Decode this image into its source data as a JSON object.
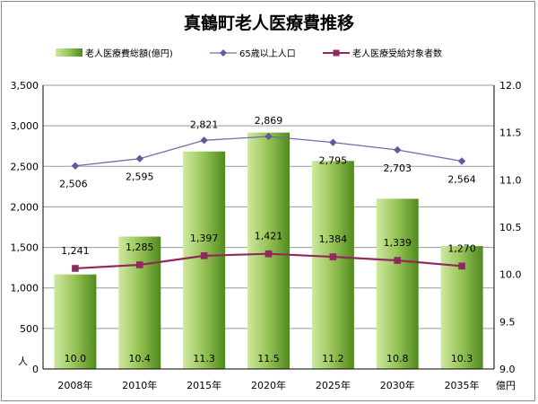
{
  "colors": {
    "bar_light": "#cfe8a3",
    "bar_dark": "#4f8a1e",
    "population_line": "#6e6ea8",
    "population_marker": "#5c5c9c",
    "eligible_line": "#8e2a5e",
    "eligible_marker": "#8e2a5e",
    "grid": "#9a9a9a"
  },
  "chart_data": {
    "type": "bar",
    "title": "真鶴町老人医療費推移",
    "categories": [
      "2008年",
      "2010年",
      "2015年",
      "2020年",
      "2025年",
      "2030年",
      "2035年"
    ],
    "series": [
      {
        "name": "老人医療費総額(億円)",
        "type": "bar",
        "axis": "right",
        "values": [
          10.0,
          10.4,
          11.3,
          11.5,
          11.2,
          10.8,
          10.3
        ],
        "labels": [
          "10.0",
          "10.4",
          "11.3",
          "11.5",
          "11.2",
          "10.8",
          "10.3"
        ]
      },
      {
        "name": "65歳以上人口",
        "type": "line",
        "axis": "left",
        "marker": "diamond",
        "values": [
          2506,
          2595,
          2821,
          2869,
          2795,
          2703,
          2564
        ],
        "labels": [
          "2,506",
          "2,595",
          "2,821",
          "2,869",
          "2,795",
          "2,703",
          "2,564"
        ]
      },
      {
        "name": "老人医療受給対象者数",
        "type": "line",
        "axis": "left",
        "marker": "square",
        "values": [
          1241,
          1285,
          1397,
          1421,
          1384,
          1339,
          1270
        ],
        "labels": [
          "1,241",
          "1,285",
          "1,397",
          "1,421",
          "1,384",
          "1,339",
          "1,270"
        ]
      }
    ],
    "y_left": {
      "label": "人",
      "ylim": [
        0,
        3500
      ],
      "ticks": [
        "0",
        "500",
        "1,000",
        "1,500",
        "2,000",
        "2,500",
        "3,000",
        "3,500"
      ]
    },
    "y_right": {
      "label": "億円",
      "ylim": [
        9.0,
        12.0
      ],
      "ticks": [
        "9.0",
        "9.5",
        "10.0",
        "10.5",
        "11.0",
        "11.5",
        "12.0"
      ]
    },
    "grid": true,
    "legend_position": "top"
  }
}
